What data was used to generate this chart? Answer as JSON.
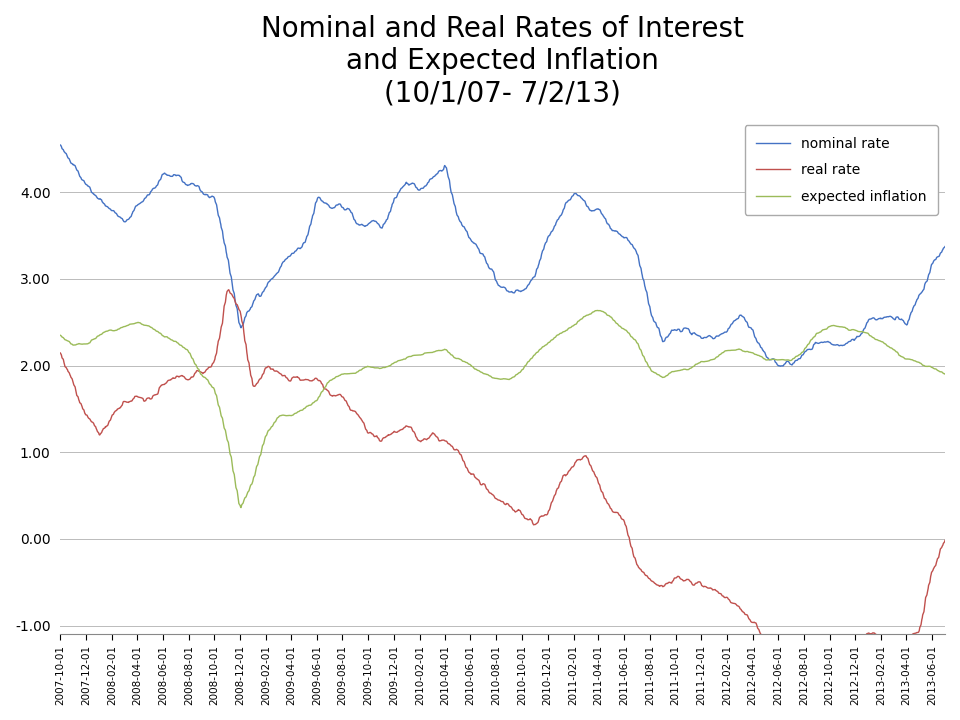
{
  "title": "Nominal and Real Rates of Interest\nand Expected Inflation\n(10/1/07- 7/2/13)",
  "title_fontsize": 20,
  "legend_labels": [
    "nominal rate",
    "real rate",
    "expected inflation"
  ],
  "legend_colors": [
    "#4472C4",
    "#C0504D",
    "#9BBB59"
  ],
  "line_width": 1.0,
  "ylim": [
    -1.1,
    4.85
  ],
  "yticks": [
    -1.0,
    0.0,
    1.0,
    2.0,
    3.0,
    4.0
  ],
  "background_color": "#FFFFFF",
  "grid_color": "#BBBBBB"
}
